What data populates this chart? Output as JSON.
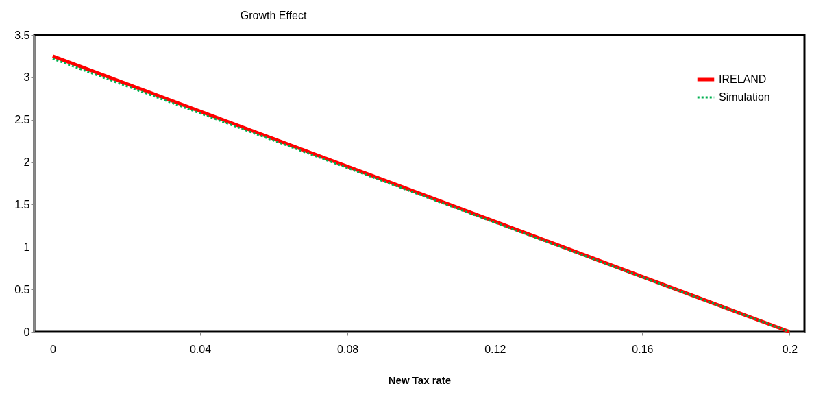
{
  "chart_data": {
    "type": "line",
    "title": "Growth Effect",
    "xlabel": "New Tax rate",
    "xlim": [
      -0.005,
      0.204
    ],
    "xticks": [
      0,
      0.04,
      0.08,
      0.12,
      0.16,
      0.2
    ],
    "ylim": [
      0,
      3.5
    ],
    "x": [
      0,
      0.2
    ],
    "yticks": [
      0,
      0.5,
      1,
      1.5,
      2,
      2.5,
      3,
      3.5
    ],
    "series": [
      {
        "name": "IRELAND",
        "color": "#ff0000",
        "line_style": "solid",
        "values": [
          3.25,
          0
        ]
      },
      {
        "name": "Simulation",
        "color": "#00b050",
        "line_style": "dotted",
        "values": [
          3.22,
          0
        ]
      }
    ],
    "grid": false,
    "legend": "top right",
    "marker": "none"
  }
}
